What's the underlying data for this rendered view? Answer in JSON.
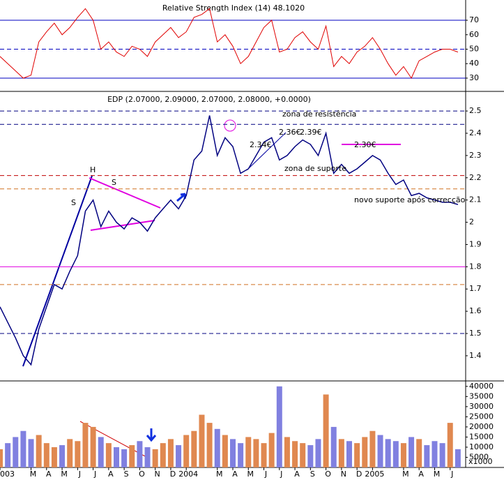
{
  "chart_data": [
    {
      "type": "line",
      "title": "Relative Strength Index (14) 48.1020",
      "color": "#e00000",
      "values": [
        45,
        40,
        35,
        30,
        32,
        55,
        62,
        68,
        60,
        65,
        72,
        78,
        70,
        50,
        55,
        48,
        45,
        52,
        50,
        45,
        55,
        60,
        65,
        58,
        62,
        72,
        74,
        78,
        55,
        60,
        52,
        40,
        45,
        55,
        65,
        70,
        48,
        50,
        58,
        62,
        55,
        50,
        66,
        38,
        45,
        40,
        48,
        52,
        58,
        50,
        40,
        32,
        38,
        30,
        42,
        45,
        48,
        50,
        50,
        48
      ],
      "ylim": [
        21.3,
        84
      ],
      "yticks": [
        30,
        40,
        50,
        60,
        70
      ],
      "levels": [
        {
          "value": 70,
          "color": "#0000c0",
          "dash": false
        },
        {
          "value": 50,
          "color": "#0000c0",
          "dash": true
        },
        {
          "value": 30,
          "color": "#0000c0",
          "dash": false
        }
      ]
    },
    {
      "type": "line",
      "title": "EDP (2.07000, 2.09000, 2.07000, 2.08000, +0.0000)",
      "color": "#000080",
      "x": [
        0,
        0.5,
        1,
        1.5,
        2,
        2.5,
        3,
        3.5,
        4,
        4.5,
        5,
        5.5,
        6,
        6.5,
        7,
        7.5,
        8,
        8.5,
        9,
        9.5,
        10,
        10.5,
        11,
        11.5,
        12,
        12.5,
        13,
        13.5,
        14,
        14.5,
        15,
        15.5,
        16,
        16.5,
        17,
        17.5,
        18,
        18.5,
        19,
        19.5,
        20,
        20.5,
        21,
        21.5,
        22,
        22.5,
        23,
        23.5,
        24,
        24.5,
        25,
        25.5,
        26,
        26.5,
        27,
        27.5,
        28,
        28.5,
        29,
        29.5
      ],
      "values": [
        1.62,
        1.55,
        1.48,
        1.4,
        1.36,
        1.52,
        1.62,
        1.72,
        1.7,
        1.78,
        1.85,
        2.05,
        2.1,
        1.98,
        2.05,
        2.0,
        1.97,
        2.02,
        2.0,
        1.96,
        2.02,
        2.06,
        2.1,
        2.06,
        2.12,
        2.28,
        2.32,
        2.48,
        2.3,
        2.38,
        2.34,
        2.22,
        2.24,
        2.3,
        2.36,
        2.38,
        2.28,
        2.3,
        2.34,
        2.37,
        2.35,
        2.3,
        2.4,
        2.22,
        2.26,
        2.22,
        2.24,
        2.27,
        2.3,
        2.28,
        2.22,
        2.17,
        2.19,
        2.12,
        2.13,
        2.11,
        2.1,
        2.09,
        2.09,
        2.08
      ],
      "ylim": [
        1.29,
        2.585
      ],
      "yticks": [
        1.4,
        1.5,
        1.6,
        1.7,
        1.8,
        1.9,
        2.0,
        2.1,
        2.2,
        2.3,
        2.4,
        2.5
      ],
      "levels": [
        {
          "value": 2.5,
          "color": "#000080",
          "dash": true
        },
        {
          "value": 2.44,
          "color": "#000080",
          "dash": true
        },
        {
          "value": 2.21,
          "color": "#c00000",
          "dash": true
        },
        {
          "value": 2.15,
          "color": "#d07020",
          "dash": true
        },
        {
          "value": 1.8,
          "color": "#e000e0",
          "dash": false
        },
        {
          "value": 1.72,
          "color": "#d07020",
          "dash": true
        },
        {
          "value": 1.5,
          "color": "#000080",
          "dash": true
        }
      ],
      "annotations": [
        "zona de resistência",
        "zona de suporte",
        "novo suporte após correcção",
        "2.30€",
        "2.36€",
        "2.39€",
        "2.34€",
        "H",
        "S",
        "S"
      ]
    },
    {
      "type": "bar",
      "unit_label": "x1000",
      "up_color": "#e08850",
      "down_color": "#8080e0",
      "values": [
        9000,
        12000,
        15000,
        18000,
        14000,
        16000,
        12000,
        10000,
        11000,
        14000,
        13000,
        22000,
        20000,
        15000,
        12000,
        10000,
        9000,
        11000,
        13000,
        10000,
        9000,
        12000,
        14000,
        11000,
        16000,
        18000,
        26000,
        22000,
        19000,
        16000,
        14000,
        12000,
        15000,
        14000,
        12000,
        17000,
        40000,
        15000,
        13000,
        12000,
        11000,
        14000,
        36000,
        20000,
        14000,
        13000,
        12000,
        15000,
        18000,
        16000,
        14000,
        13000,
        12000,
        15000,
        14000,
        11000,
        13000,
        12000,
        22000,
        9000
      ],
      "ylim": [
        0,
        42000
      ],
      "yticks": [
        5000,
        10000,
        15000,
        20000,
        25000,
        30000,
        35000,
        40000
      ],
      "xlim": [
        0,
        30
      ],
      "xticks": [
        {
          "value": 0,
          "label": "003"
        },
        {
          "value": 2,
          "label": "M"
        },
        {
          "value": 3,
          "label": "A"
        },
        {
          "value": 4,
          "label": "M"
        },
        {
          "value": 5,
          "label": "J"
        },
        {
          "value": 6,
          "label": "J"
        },
        {
          "value": 7,
          "label": "A"
        },
        {
          "value": 8,
          "label": "S"
        },
        {
          "value": 9,
          "label": "O"
        },
        {
          "value": 10,
          "label": "N"
        },
        {
          "value": 11,
          "label": "D"
        },
        {
          "value": 12,
          "label": "2004"
        },
        {
          "value": 14,
          "label": "M"
        },
        {
          "value": 15,
          "label": "A"
        },
        {
          "value": 16,
          "label": "M"
        },
        {
          "value": 17,
          "label": "J"
        },
        {
          "value": 18,
          "label": "J"
        },
        {
          "value": 19,
          "label": "A"
        },
        {
          "value": 20,
          "label": "S"
        },
        {
          "value": 21,
          "label": "O"
        },
        {
          "value": 22,
          "label": "N"
        },
        {
          "value": 23,
          "label": "D"
        },
        {
          "value": 24,
          "label": "2005"
        },
        {
          "value": 26,
          "label": "M"
        },
        {
          "value": 27,
          "label": "A"
        },
        {
          "value": 28,
          "label": "M"
        },
        {
          "value": 29,
          "label": "J"
        }
      ]
    }
  ]
}
